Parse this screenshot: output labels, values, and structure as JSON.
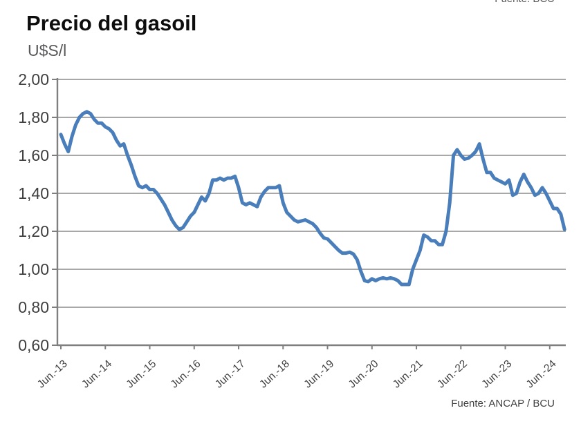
{
  "page": {
    "top_source_clipped": "Fuente: BCU",
    "bottom_source": "Fuente: ANCAP / BCU"
  },
  "header": {
    "title": "Precio del gasoil",
    "unit_label": "U$S/l"
  },
  "chart_data": {
    "type": "line",
    "title": "Precio del gasoil",
    "ylabel": "U$S/l",
    "xlabel": "",
    "legend": "none",
    "grid": "horizontal",
    "ylim": [
      0.6,
      2.0
    ],
    "y_tick_step": 0.2,
    "y_tick_labels": [
      "2,00",
      "1,80",
      "1,60",
      "1,40",
      "1,20",
      "1,00",
      "0,80",
      "0,60"
    ],
    "x_tick_labels": [
      "Jun.-13",
      "Jun.-14",
      "Jun.-15",
      "Jun.-16",
      "Jun.-17",
      "Jun.-18",
      "Jun.-19",
      "Jun.-20",
      "Jun.-21",
      "Jun.-22",
      "Jun.-23",
      "Jun.-24"
    ],
    "frequency": "monthly",
    "start_month": "2013-06",
    "end_month": "2024-10",
    "series": [
      {
        "name": "Precio del gasoil (U$S/l)",
        "values": [
          1.71,
          1.66,
          1.62,
          1.7,
          1.76,
          1.8,
          1.82,
          1.83,
          1.82,
          1.79,
          1.77,
          1.77,
          1.75,
          1.74,
          1.72,
          1.68,
          1.65,
          1.66,
          1.6,
          1.55,
          1.49,
          1.44,
          1.43,
          1.44,
          1.42,
          1.42,
          1.4,
          1.37,
          1.34,
          1.3,
          1.26,
          1.23,
          1.21,
          1.22,
          1.25,
          1.28,
          1.3,
          1.34,
          1.38,
          1.36,
          1.4,
          1.47,
          1.47,
          1.48,
          1.47,
          1.48,
          1.48,
          1.49,
          1.43,
          1.35,
          1.34,
          1.35,
          1.34,
          1.33,
          1.38,
          1.41,
          1.43,
          1.43,
          1.43,
          1.44,
          1.35,
          1.3,
          1.28,
          1.26,
          1.25,
          1.255,
          1.26,
          1.25,
          1.24,
          1.22,
          1.19,
          1.165,
          1.16,
          1.14,
          1.12,
          1.1,
          1.085,
          1.085,
          1.09,
          1.08,
          1.05,
          0.99,
          0.94,
          0.935,
          0.95,
          0.94,
          0.95,
          0.955,
          0.95,
          0.955,
          0.95,
          0.94,
          0.92,
          0.92,
          0.92,
          1.0,
          1.05,
          1.1,
          1.18,
          1.17,
          1.15,
          1.15,
          1.13,
          1.13,
          1.2,
          1.35,
          1.6,
          1.63,
          1.6,
          1.58,
          1.585,
          1.6,
          1.62,
          1.66,
          1.58,
          1.51,
          1.51,
          1.48,
          1.47,
          1.46,
          1.45,
          1.47,
          1.39,
          1.4,
          1.46,
          1.5,
          1.46,
          1.43,
          1.39,
          1.4,
          1.43,
          1.4,
          1.36,
          1.32,
          1.32,
          1.29,
          1.21
        ]
      }
    ],
    "colors": {
      "line": "#4a7ebb",
      "grid": "#8c8c8c",
      "axis": "#7f7f7f",
      "tick_label": "#3f3f3f"
    }
  }
}
